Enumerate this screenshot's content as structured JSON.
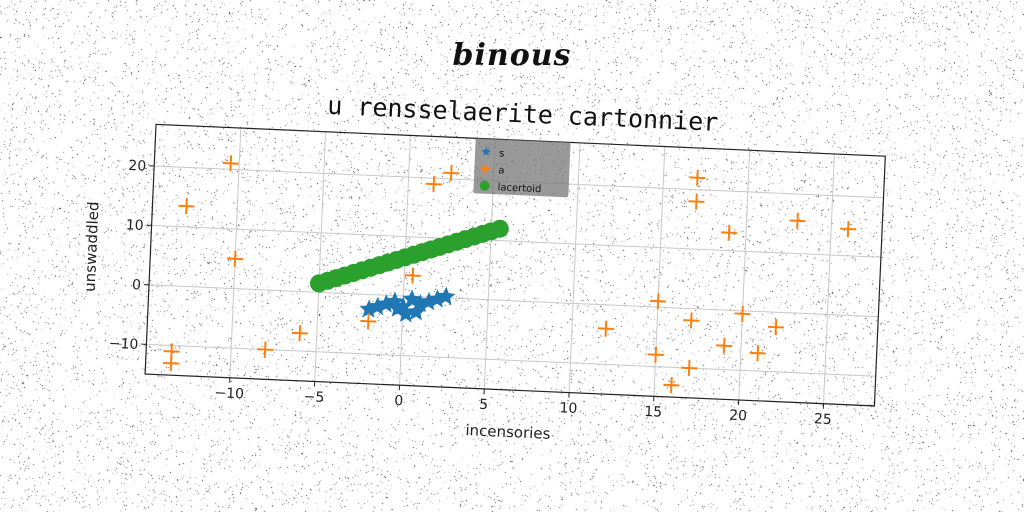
{
  "figure": {
    "suptitle": "binous"
  },
  "chart_data": {
    "type": "scatter",
    "title": "u rensselaerite cartonnier",
    "xlabel": "incensories",
    "ylabel": "unswaddled",
    "xlim": [
      -15,
      28
    ],
    "ylim": [
      -15,
      27
    ],
    "xticks": [
      -10,
      -5,
      0,
      5,
      10,
      15,
      20,
      25
    ],
    "yticks": [
      -10,
      0,
      10,
      20
    ],
    "xtick_labels": [
      "−10",
      "−5",
      "0",
      "5",
      "10",
      "15",
      "20",
      "25"
    ],
    "ytick_labels": [
      "−10",
      "0",
      "10",
      "20"
    ],
    "grid": true,
    "legend_position": "top-center",
    "series": [
      {
        "name": "s",
        "marker": "star",
        "color": "#1f77b4",
        "x": [
          -2.0,
          -1.5,
          -1.0,
          -0.5,
          0.0,
          0.5,
          1.0,
          1.5,
          2.0,
          2.5,
          0.2,
          -0.3,
          0.8
        ],
        "y": [
          -2.5,
          -2.0,
          -1.5,
          -1.0,
          -1.8,
          -0.5,
          -1.2,
          -0.8,
          -0.3,
          0.2,
          -3.0,
          -2.2,
          -2.6
        ]
      },
      {
        "name": "a",
        "marker": "plus",
        "color": "#ff7f0e",
        "x": [
          -10.5,
          -13.0,
          -10.0,
          -13.5,
          -13.5,
          -8.0,
          -6.0,
          -2.0,
          0.5,
          1.5,
          2.5,
          12.0,
          15.0,
          15.0,
          16.0,
          17.0,
          17.0,
          17.0,
          17.0,
          19.0,
          19.0,
          20.0,
          21.0,
          22.0,
          23.0,
          26.0
        ],
        "y": [
          21.0,
          13.5,
          5.0,
          -11.0,
          -13.0,
          -10.0,
          -7.0,
          -4.5,
          3.5,
          19.0,
          21.0,
          -4.0,
          1.0,
          -8.0,
          -13.0,
          -10.0,
          -2.0,
          18.0,
          22.0,
          13.0,
          -6.0,
          -0.5,
          -7.0,
          -2.5,
          15.5,
          14.5
        ]
      },
      {
        "name": "lacertoid",
        "marker": "circle",
        "color": "#2ca02c",
        "x": [
          -5.0,
          -4.5,
          -4.0,
          -3.5,
          -3.0,
          -2.5,
          -2.0,
          -1.5,
          -1.0,
          -0.5,
          0.0,
          0.5,
          1.0,
          1.5,
          2.0,
          2.5,
          3.0,
          3.5,
          4.0,
          4.5,
          5.0,
          5.5
        ],
        "y": [
          1.5,
          2.0,
          2.5,
          3.0,
          3.5,
          4.0,
          4.5,
          5.0,
          5.5,
          6.0,
          6.5,
          7.0,
          7.5,
          8.0,
          8.5,
          9.0,
          9.5,
          10.0,
          10.5,
          11.0,
          11.5,
          12.0
        ]
      }
    ]
  }
}
